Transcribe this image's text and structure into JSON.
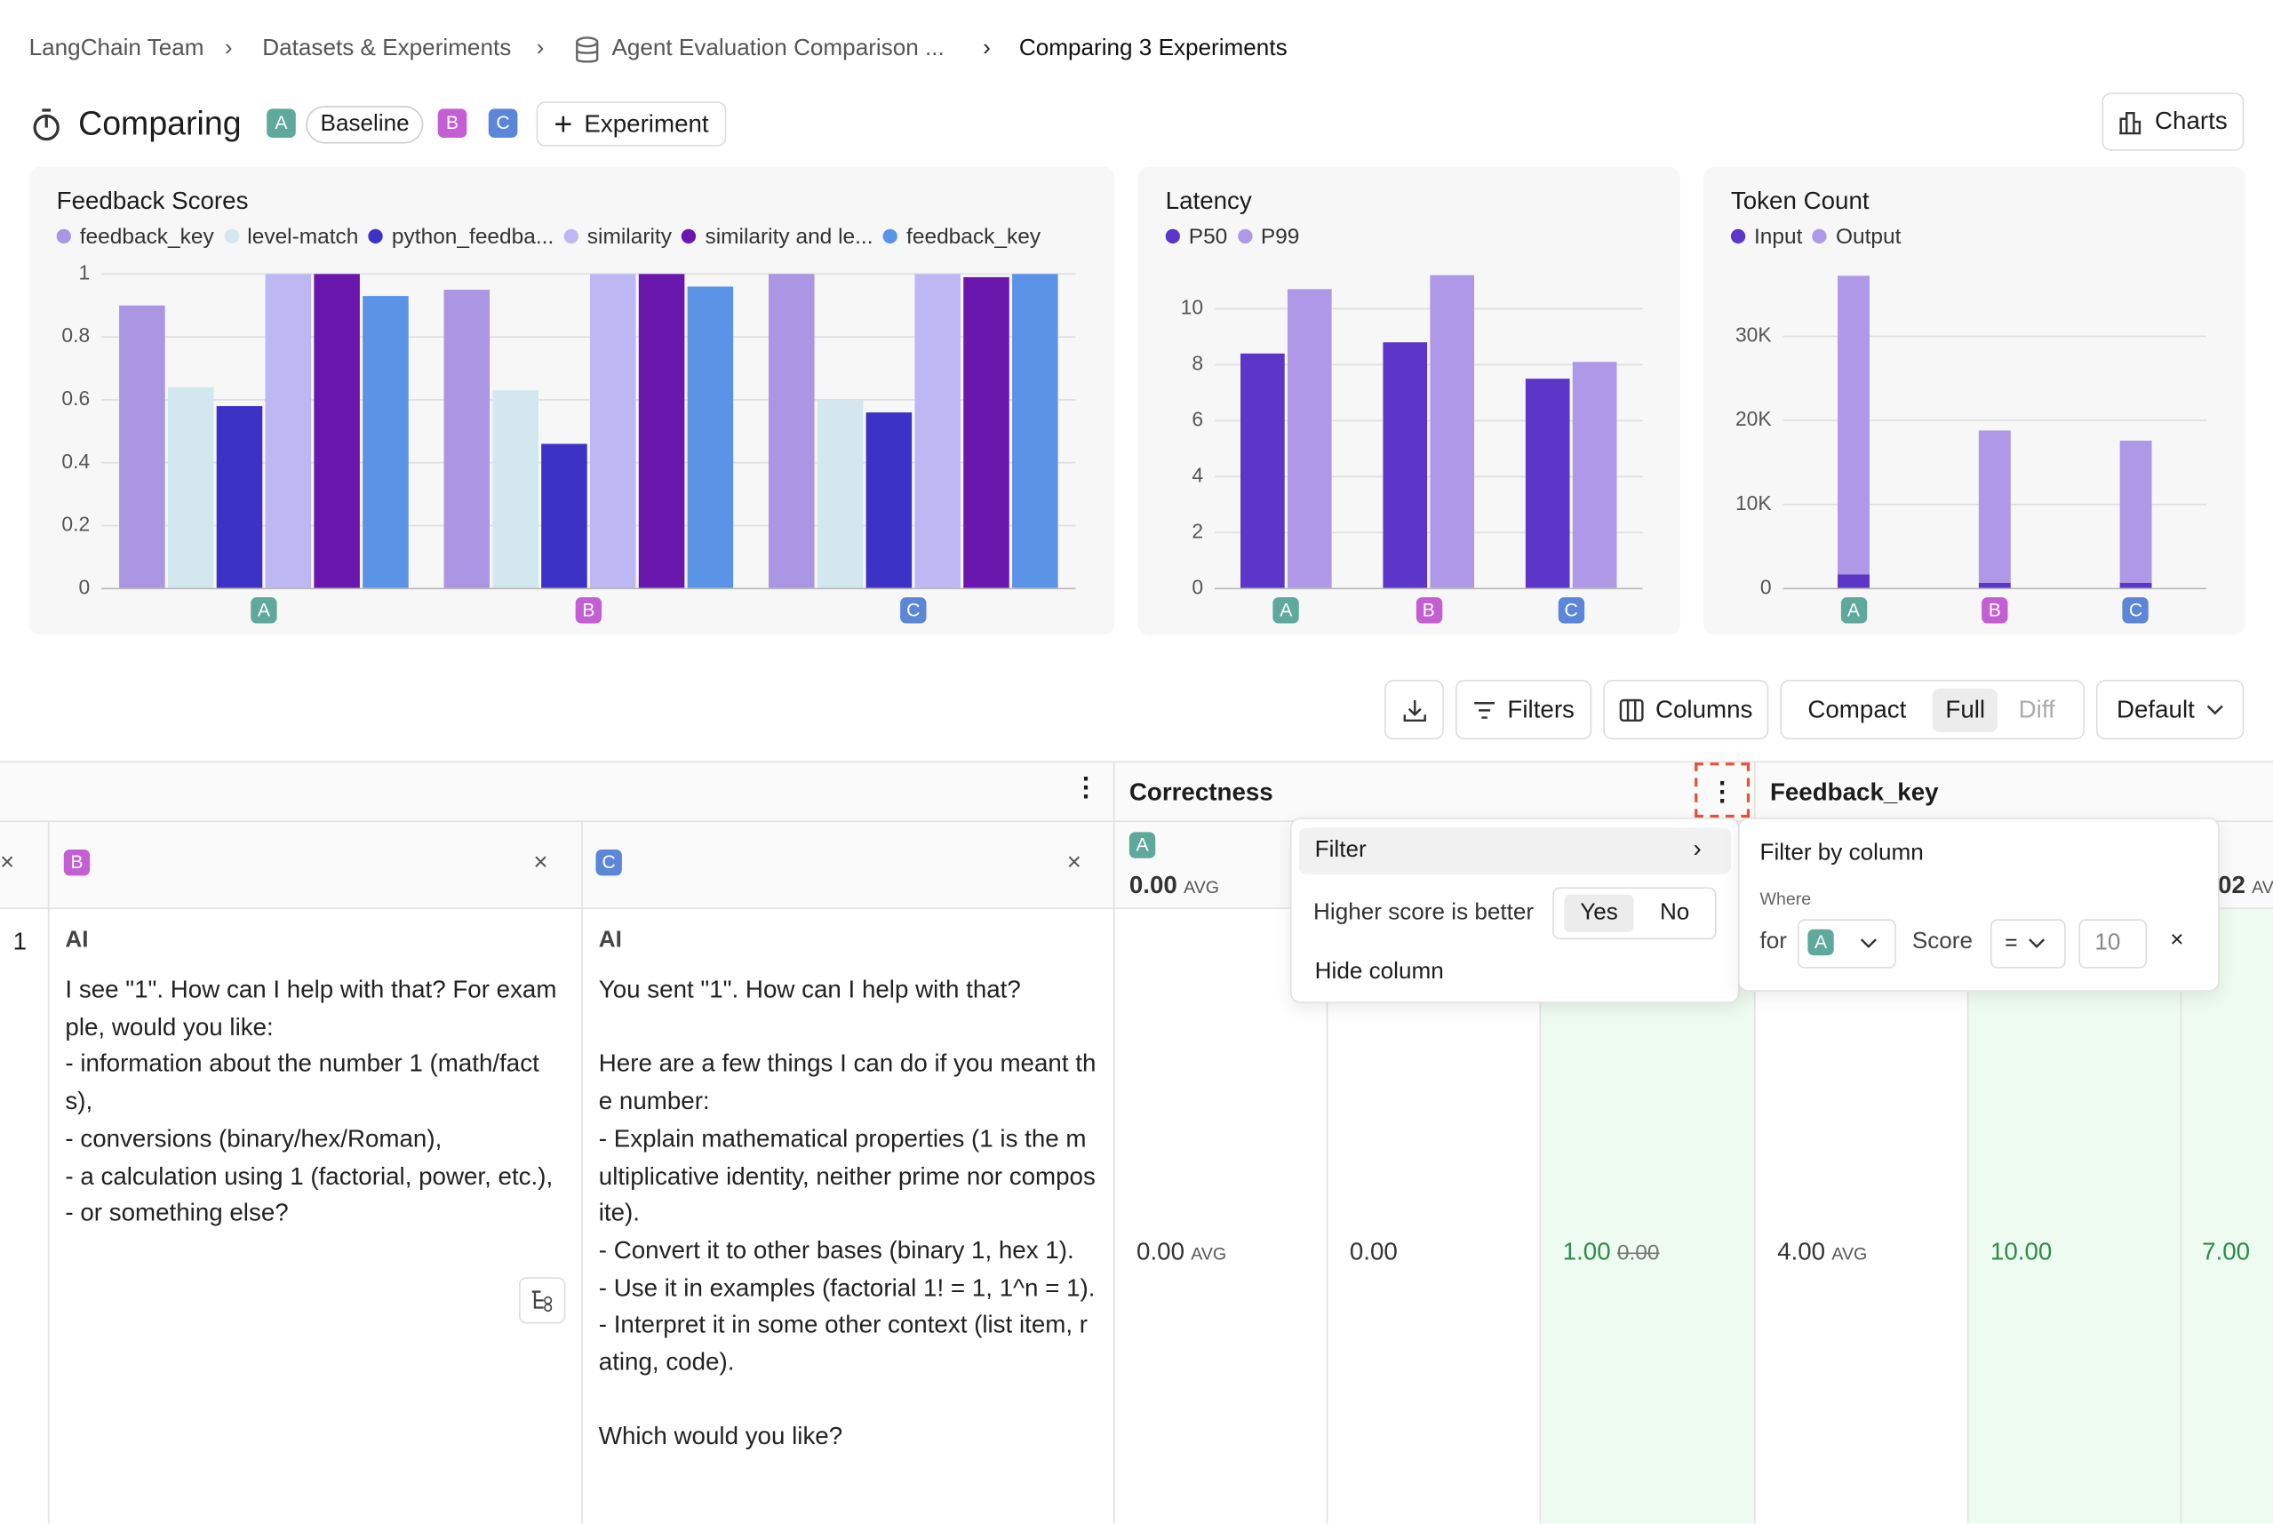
{
  "breadcrumbs": [
    "LangChain Team",
    "Datasets & Experiments",
    "Agent Evaluation Comparison ...",
    "Comparing 3 Experiments"
  ],
  "header": {
    "title": "Comparing",
    "badges": [
      "A",
      "Baseline",
      "B",
      "C"
    ],
    "add_button": "Experiment",
    "charts_button": "Charts"
  },
  "chart_data": [
    {
      "type": "bar",
      "title": "Feedback Scores",
      "categories": [
        "A",
        "B",
        "C"
      ],
      "ylim": [
        0,
        1
      ],
      "yticks": [
        0,
        0.2,
        0.4,
        0.6,
        0.8,
        1
      ],
      "grid": true,
      "series": [
        {
          "name": "feedback_key",
          "color": "#ab96e3",
          "values": [
            0.9,
            0.95,
            1
          ]
        },
        {
          "name": "level-match",
          "color": "#d3e7ef",
          "values": [
            0.64,
            0.63,
            0.6
          ]
        },
        {
          "name": "python_feedba...",
          "color": "#3c33c6",
          "values": [
            0.58,
            0.46,
            0.56
          ]
        },
        {
          "name": "similarity",
          "color": "#bdb7f3",
          "values": [
            1,
            1,
            1
          ]
        },
        {
          "name": "similarity and le...",
          "color": "#6a17ae",
          "values": [
            1,
            1,
            0.99
          ]
        },
        {
          "name": "feedback_key",
          "color": "#5b94e7",
          "values": [
            0.93,
            0.96,
            1
          ]
        }
      ]
    },
    {
      "type": "bar",
      "title": "Latency",
      "categories": [
        "A",
        "B",
        "C"
      ],
      "ylim": [
        0,
        11.5
      ],
      "yticks": [
        0,
        2,
        4,
        6,
        8,
        10
      ],
      "grid": true,
      "series": [
        {
          "name": "P50",
          "color": "#5c36c9",
          "values": [
            8.4,
            8.8,
            7.5
          ]
        },
        {
          "name": "P99",
          "color": "#ae98e7",
          "values": [
            10.7,
            11.2,
            8.1
          ]
        }
      ]
    },
    {
      "type": "bar",
      "stacked": true,
      "title": "Token Count",
      "categories": [
        "A",
        "B",
        "C"
      ],
      "ylim": [
        0,
        37500
      ],
      "yticks": [
        0,
        {
          "value": 10000,
          "label": "10K"
        },
        {
          "value": 20000,
          "label": "20K"
        },
        {
          "value": 30000,
          "label": "30K"
        }
      ],
      "grid": true,
      "series": [
        {
          "name": "Input",
          "color": "#5c36c9",
          "values": [
            1700,
            700,
            700
          ]
        },
        {
          "name": "Output",
          "color": "#ae98e7",
          "values": [
            35500,
            18100,
            16900
          ]
        }
      ]
    }
  ],
  "toolbar": {
    "filters": "Filters",
    "columns": "Columns",
    "modes": [
      "Compact",
      "Full",
      "Diff"
    ],
    "sort": "Default"
  },
  "table": {
    "groups": [
      "Correctness",
      "Feedback_key"
    ],
    "columns": [
      "B",
      "C"
    ],
    "row_number": "1",
    "role_b": "AI",
    "role_c": "AI",
    "output_b": "I see \"1\". How can I help with that? For example, would you like:\n- information about the number 1 (math/facts),\n- conversions (binary/hex/Roman),\n- a calculation using 1 (factorial, power, etc.),\n- or something else?",
    "output_c": "You sent \"1\". How can I help with that?\n\nHere are a few things I can do if you meant the number:\n- Explain mathematical properties (1 is the multiplicative identity, neither prime nor composite).\n- Convert it to other bases (binary 1, hex 1).\n- Use it in examples (factorial 1! = 1, 1^n = 1).\n- Interpret it in some other context (list item, rating, code).\n\nWhich would you like?",
    "correctness_header": {
      "badge": "A",
      "value": "0.00",
      "unit": "AVG"
    },
    "feedback_header": {
      "value": "02",
      "unit": "AV"
    },
    "cells": {
      "correctness_avg": "0.00",
      "avg_unit": "AVG",
      "correctness_b": "0.00",
      "correctness_c": "1.00",
      "correctness_c_old": "0.00",
      "feedback_avg": "4.00",
      "feedback_unit": "AVG",
      "feedback_b": "10.00",
      "feedback_c": "7.00"
    }
  },
  "column_menu": {
    "filter": "Filter",
    "higher_better": "Higher score is better",
    "yes": "Yes",
    "no": "No",
    "hide": "Hide column"
  },
  "filter_panel": {
    "title": "Filter by column",
    "where": "Where",
    "for": "for",
    "experiment": "A",
    "field": "Score",
    "operator": "=",
    "value": "10"
  }
}
